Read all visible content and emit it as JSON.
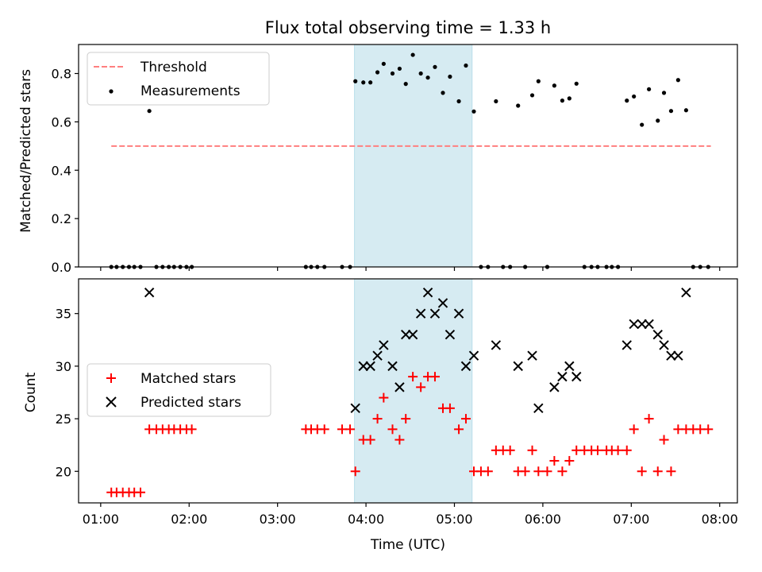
{
  "figure": {
    "title": "Flux total observing time = 1.33 h"
  },
  "chart_data": [
    {
      "type": "scatter",
      "ylabel": "Matched/Predicted stars",
      "ylim": [
        0,
        0.92
      ],
      "yticks": [
        0.0,
        0.2,
        0.4,
        0.6,
        0.8
      ],
      "ytick_labels": [
        "0.0",
        "0.2",
        "0.4",
        "0.6",
        "0.8"
      ],
      "x_range_hours": [
        0.75,
        8.2
      ],
      "highlight_span": [
        3.87,
        5.2
      ],
      "highlight_color": "#add8e6",
      "threshold": {
        "name": "Threshold",
        "y": 0.5,
        "x": [
          1.12,
          7.9
        ],
        "color": "#ff7f7f"
      },
      "series": [
        {
          "name": "Measurements",
          "color": "#000000",
          "points": [
            [
              1.12,
              0
            ],
            [
              1.18,
              0
            ],
            [
              1.25,
              0
            ],
            [
              1.32,
              0
            ],
            [
              1.38,
              0
            ],
            [
              1.45,
              0
            ],
            [
              1.55,
              0.645
            ],
            [
              1.63,
              0
            ],
            [
              1.7,
              0
            ],
            [
              1.77,
              0
            ],
            [
              1.83,
              0
            ],
            [
              1.9,
              0
            ],
            [
              1.97,
              0
            ],
            [
              2.03,
              0
            ],
            [
              3.32,
              0
            ],
            [
              3.38,
              0
            ],
            [
              3.45,
              0
            ],
            [
              3.53,
              0
            ],
            [
              3.73,
              0
            ],
            [
              3.82,
              0
            ],
            [
              3.88,
              0.768
            ],
            [
              3.97,
              0.763
            ],
            [
              4.05,
              0.763
            ],
            [
              4.13,
              0.805
            ],
            [
              4.2,
              0.84
            ],
            [
              4.3,
              0.8
            ],
            [
              4.38,
              0.82
            ],
            [
              4.45,
              0.757
            ],
            [
              4.53,
              0.877
            ],
            [
              4.62,
              0.8
            ],
            [
              4.7,
              0.783
            ],
            [
              4.78,
              0.827
            ],
            [
              4.87,
              0.72
            ],
            [
              4.95,
              0.787
            ],
            [
              5.05,
              0.685
            ],
            [
              5.13,
              0.833
            ],
            [
              5.22,
              0.643
            ],
            [
              5.3,
              0
            ],
            [
              5.38,
              0
            ],
            [
              5.55,
              0
            ],
            [
              5.63,
              0
            ],
            [
              5.8,
              0
            ],
            [
              6.05,
              0
            ],
            [
              5.47,
              0.685
            ],
            [
              5.72,
              0.667
            ],
            [
              5.88,
              0.71
            ],
            [
              5.95,
              0.768
            ],
            [
              6.13,
              0.75
            ],
            [
              6.22,
              0.688
            ],
            [
              6.3,
              0.697
            ],
            [
              6.38,
              0.758
            ],
            [
              6.47,
              0
            ],
            [
              6.55,
              0
            ],
            [
              6.62,
              0
            ],
            [
              6.72,
              0
            ],
            [
              6.78,
              0
            ],
            [
              6.85,
              0
            ],
            [
              6.95,
              0.688
            ],
            [
              7.03,
              0.705
            ],
            [
              7.12,
              0.588
            ],
            [
              7.2,
              0.735
            ],
            [
              7.3,
              0.605
            ],
            [
              7.37,
              0.72
            ],
            [
              7.45,
              0.645
            ],
            [
              7.53,
              0.773
            ],
            [
              7.62,
              0.648
            ],
            [
              7.7,
              0
            ],
            [
              7.78,
              0
            ],
            [
              7.87,
              0
            ]
          ]
        }
      ],
      "legend": {
        "placement": "upper-left",
        "entries": [
          "Threshold",
          "Measurements"
        ]
      }
    },
    {
      "type": "scatter",
      "xlabel": "Time (UTC)",
      "ylabel": "Count",
      "ylim": [
        17,
        38.3
      ],
      "yticks": [
        20,
        25,
        30,
        35
      ],
      "ytick_labels": [
        "20",
        "25",
        "30",
        "35"
      ],
      "xticks_hours": [
        1,
        2,
        3,
        4,
        5,
        6,
        7,
        8
      ],
      "xtick_labels": [
        "01:00",
        "02:00",
        "03:00",
        "04:00",
        "05:00",
        "06:00",
        "07:00",
        "08:00"
      ],
      "x_range_hours": [
        0.75,
        8.2
      ],
      "highlight_span": [
        3.87,
        5.2
      ],
      "highlight_color": "#add8e6",
      "series": [
        {
          "name": "Matched stars",
          "marker": "plus",
          "color": "#ff0000",
          "points": [
            [
              1.12,
              18
            ],
            [
              1.18,
              18
            ],
            [
              1.25,
              18
            ],
            [
              1.32,
              18
            ],
            [
              1.38,
              18
            ],
            [
              1.45,
              18
            ],
            [
              1.55,
              24
            ],
            [
              1.63,
              24
            ],
            [
              1.7,
              24
            ],
            [
              1.77,
              24
            ],
            [
              1.83,
              24
            ],
            [
              1.9,
              24
            ],
            [
              1.97,
              24
            ],
            [
              2.03,
              24
            ],
            [
              3.32,
              24
            ],
            [
              3.38,
              24
            ],
            [
              3.45,
              24
            ],
            [
              3.53,
              24
            ],
            [
              3.73,
              24
            ],
            [
              3.82,
              24
            ],
            [
              3.88,
              20
            ],
            [
              3.97,
              23
            ],
            [
              4.05,
              23
            ],
            [
              4.13,
              25
            ],
            [
              4.2,
              27
            ],
            [
              4.3,
              24
            ],
            [
              4.38,
              23
            ],
            [
              4.45,
              25
            ],
            [
              4.53,
              29
            ],
            [
              4.62,
              28
            ],
            [
              4.7,
              29
            ],
            [
              4.78,
              29
            ],
            [
              4.87,
              26
            ],
            [
              4.95,
              26
            ],
            [
              5.05,
              24
            ],
            [
              5.13,
              25
            ],
            [
              5.22,
              20
            ],
            [
              5.3,
              20
            ],
            [
              5.38,
              20
            ],
            [
              5.47,
              22
            ],
            [
              5.55,
              22
            ],
            [
              5.63,
              22
            ],
            [
              5.72,
              20
            ],
            [
              5.8,
              20
            ],
            [
              5.88,
              22
            ],
            [
              5.95,
              20
            ],
            [
              6.05,
              20
            ],
            [
              6.13,
              21
            ],
            [
              6.22,
              20
            ],
            [
              6.3,
              21
            ],
            [
              6.38,
              22
            ],
            [
              6.47,
              22
            ],
            [
              6.55,
              22
            ],
            [
              6.62,
              22
            ],
            [
              6.72,
              22
            ],
            [
              6.78,
              22
            ],
            [
              6.85,
              22
            ],
            [
              6.95,
              22
            ],
            [
              7.03,
              24
            ],
            [
              7.12,
              20
            ],
            [
              7.2,
              25
            ],
            [
              7.3,
              20
            ],
            [
              7.37,
              23
            ],
            [
              7.45,
              20
            ],
            [
              7.53,
              24
            ],
            [
              7.62,
              24
            ],
            [
              7.7,
              24
            ],
            [
              7.78,
              24
            ],
            [
              7.87,
              24
            ]
          ]
        },
        {
          "name": "Predicted stars",
          "marker": "x",
          "color": "#000000",
          "points": [
            [
              1.55,
              37
            ],
            [
              3.88,
              26
            ],
            [
              3.97,
              30
            ],
            [
              4.05,
              30
            ],
            [
              4.13,
              31
            ],
            [
              4.2,
              32
            ],
            [
              4.3,
              30
            ],
            [
              4.38,
              28
            ],
            [
              4.45,
              33
            ],
            [
              4.53,
              33
            ],
            [
              4.62,
              35
            ],
            [
              4.7,
              37
            ],
            [
              4.78,
              35
            ],
            [
              4.87,
              36
            ],
            [
              4.95,
              33
            ],
            [
              5.05,
              35
            ],
            [
              5.13,
              30
            ],
            [
              5.22,
              31
            ],
            [
              5.47,
              32
            ],
            [
              5.72,
              30
            ],
            [
              5.88,
              31
            ],
            [
              5.95,
              26
            ],
            [
              6.13,
              28
            ],
            [
              6.22,
              29
            ],
            [
              6.3,
              30
            ],
            [
              6.38,
              29
            ],
            [
              6.95,
              32
            ],
            [
              7.03,
              34
            ],
            [
              7.12,
              34
            ],
            [
              7.2,
              34
            ],
            [
              7.3,
              33
            ],
            [
              7.37,
              32
            ],
            [
              7.45,
              31
            ],
            [
              7.53,
              31
            ],
            [
              7.62,
              37
            ]
          ]
        }
      ],
      "legend": {
        "placement": "center-left",
        "entries": [
          "Matched stars",
          "Predicted stars"
        ]
      }
    }
  ]
}
